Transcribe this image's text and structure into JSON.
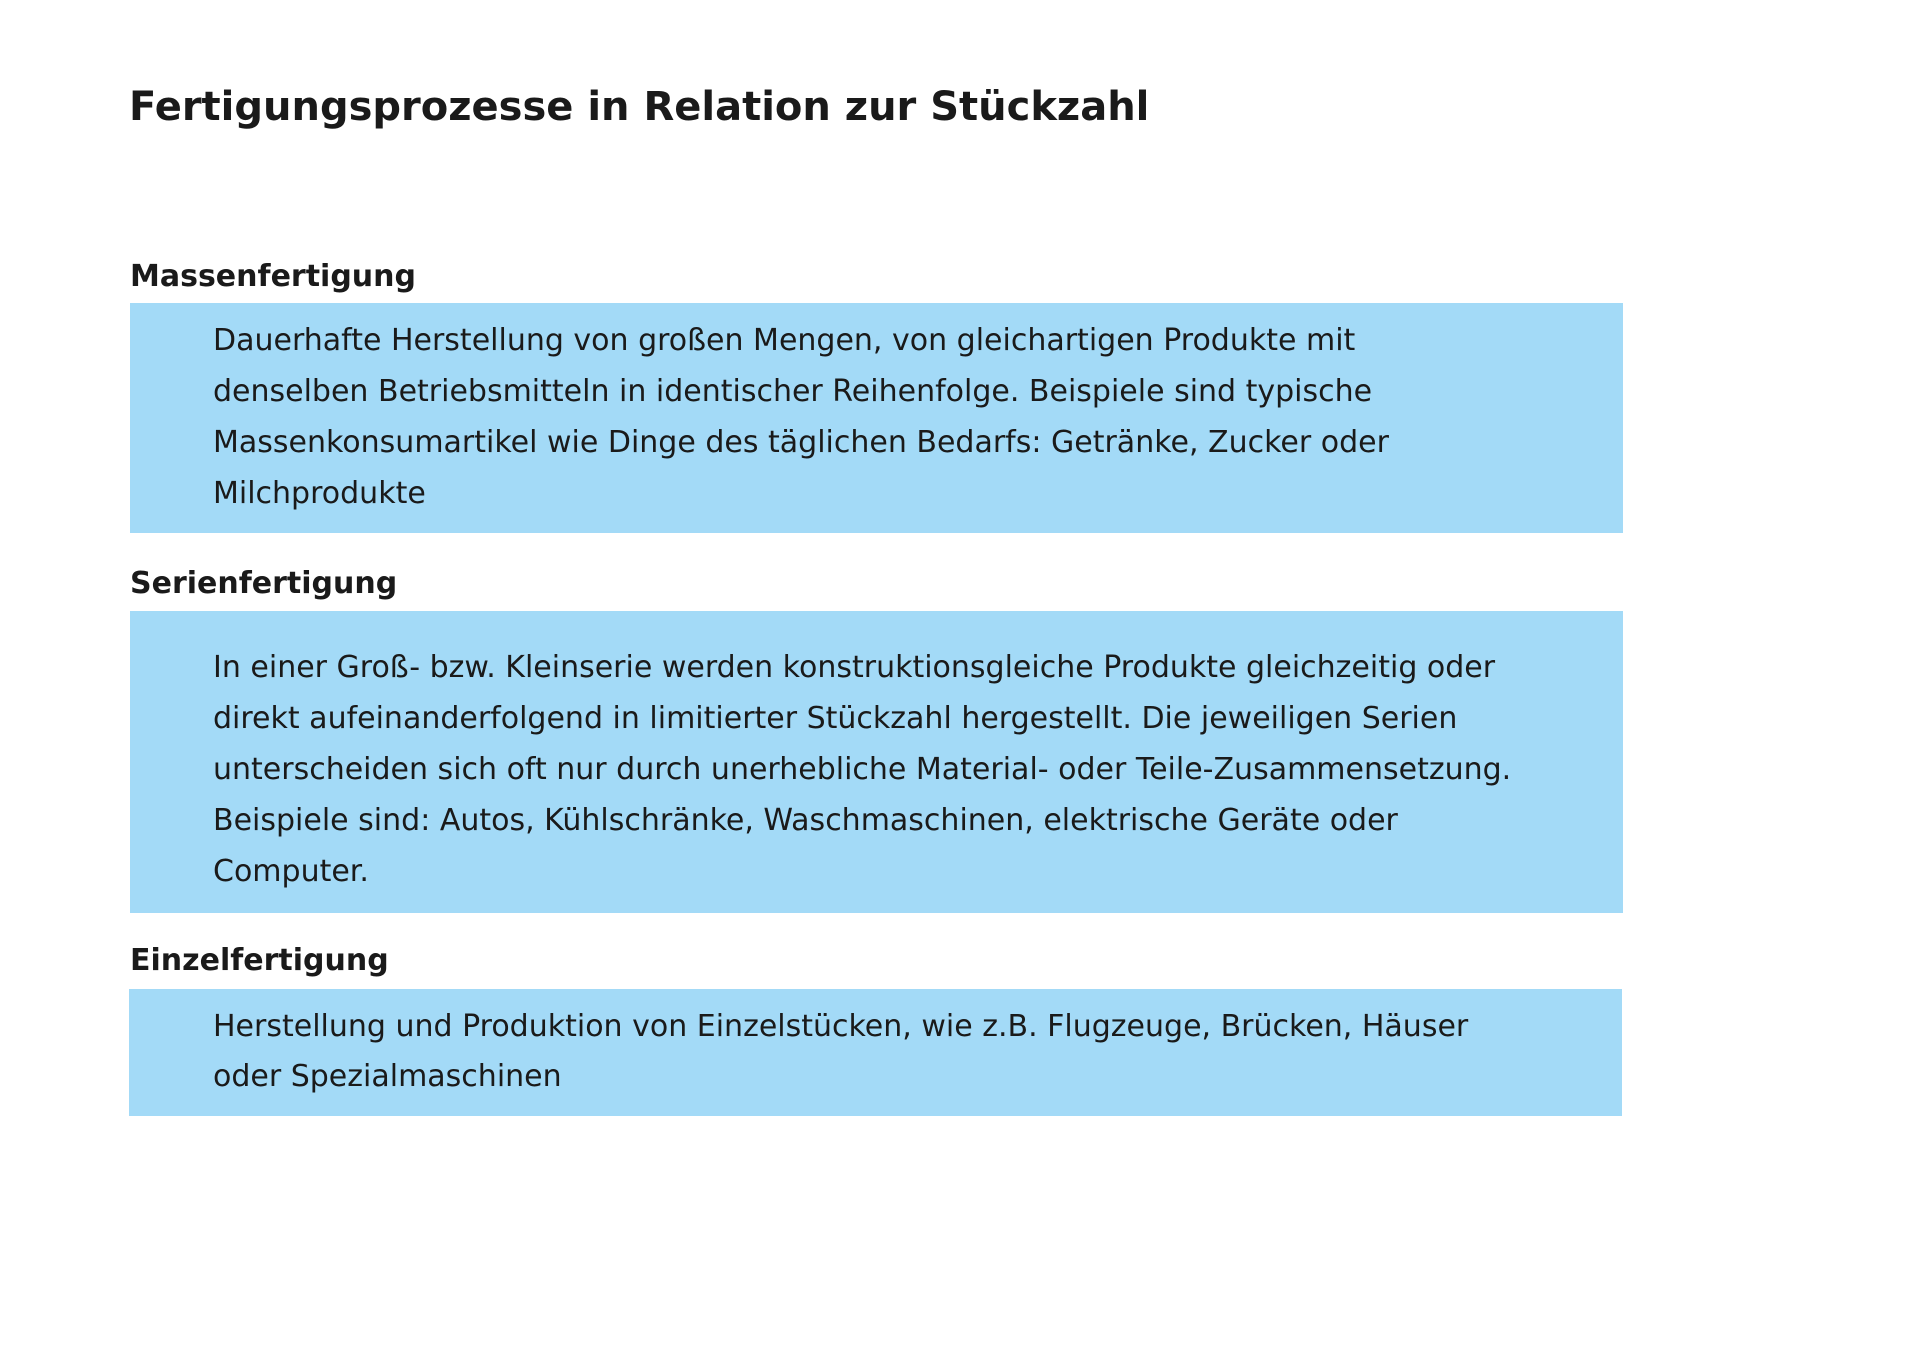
{
  "title": "Fertigungsprozesse in Relation zur Stückzahl",
  "sections": [
    {
      "heading": "Massenfertigung",
      "lines": [
        "Dauerhafte Herstellung von großen Mengen, von gleichartigen Produkte mit",
        "denselben Betriebsmitteln in identischer Reihenfolge. Beispiele sind typische",
        "Massenkonsumartikel wie Dinge des täglichen Bedarfs: Getränke, Zucker oder",
        "Milchprodukte"
      ]
    },
    {
      "heading": "Serienfertigung",
      "lines": [
        "In einer Groß- bzw. Kleinserie werden konstruktionsgleiche Produkte gleichzeitig oder",
        "direkt aufeinanderfolgend in limitierter Stückzahl hergestellt. Die jeweiligen Serien",
        "unterscheiden sich oft nur durch unerhebliche Material- oder Teile-Zusammensetzung.",
        "Beispiele sind: Autos, Kühlschränke, Waschmaschinen, elektrische Geräte oder",
        "Computer."
      ]
    },
    {
      "heading": "Einzelfertigung",
      "lines": [
        "Herstellung und Produktion von Einzelstücken, wie z.B. Flugzeuge, Brücken, Häuser",
        "oder Spezialmaschinen"
      ]
    }
  ],
  "colors": {
    "box_background": "#a3daf7",
    "text": "#1a1a1a"
  }
}
